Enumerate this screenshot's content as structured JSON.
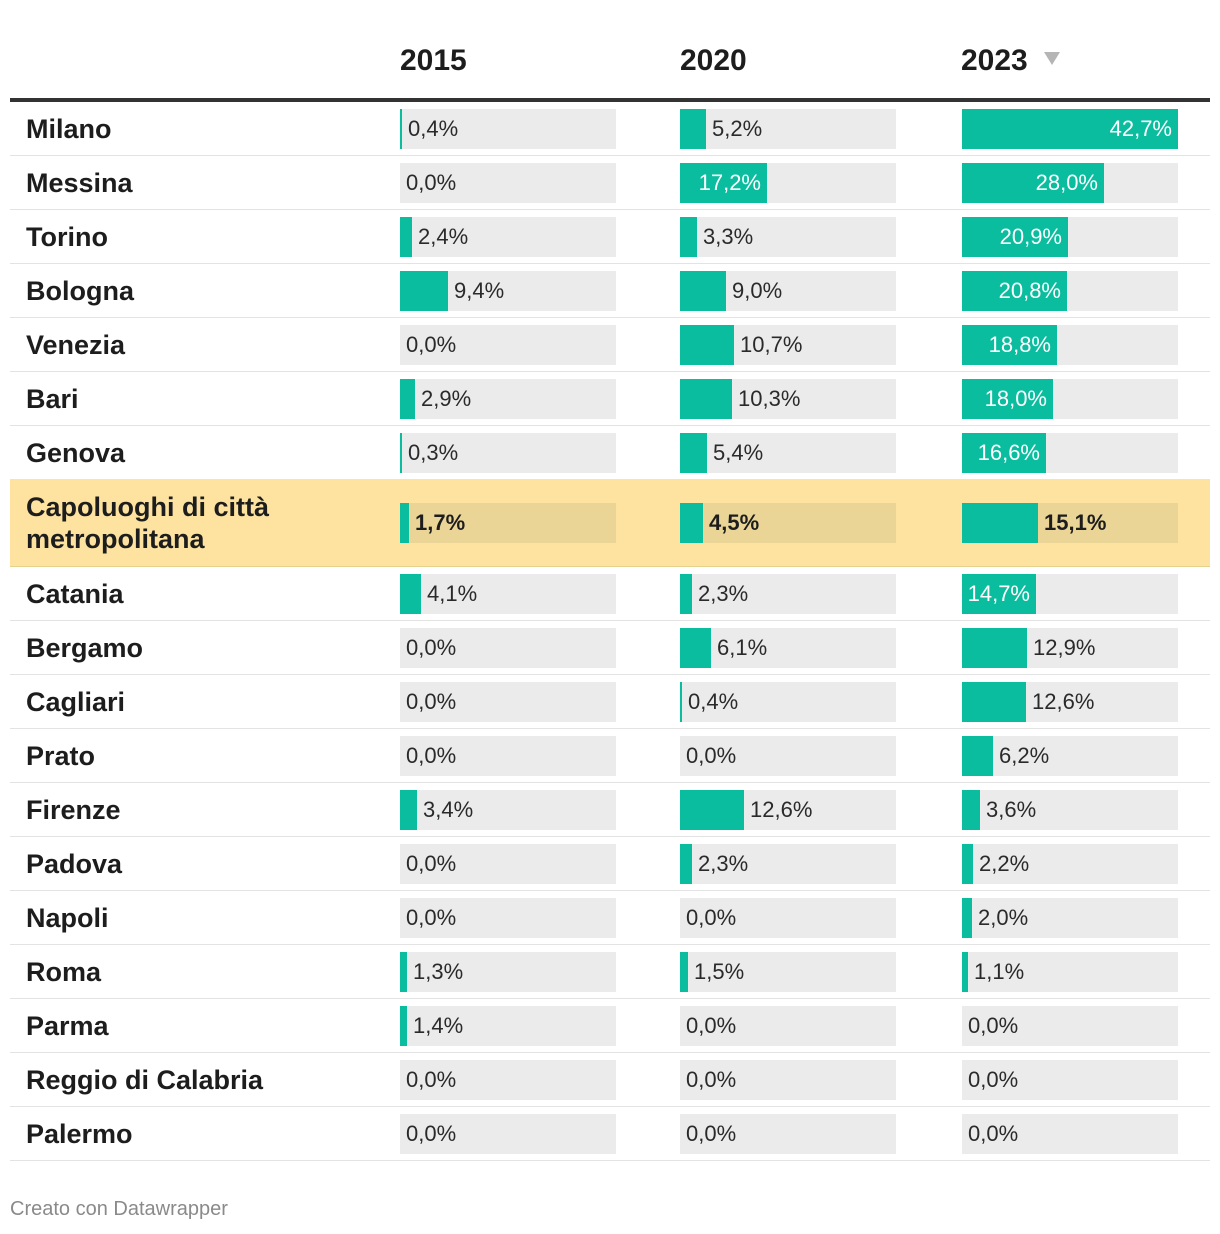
{
  "chart_data": {
    "type": "table",
    "columns": [
      "2015",
      "2020",
      "2023"
    ],
    "sorted_column": "2023",
    "sort_icon": "sort-desc-icon",
    "max_value": 42.7,
    "bar_color": "#0bbd9f",
    "highlight_color": "#fde39f",
    "rows": [
      {
        "name": "Milano",
        "values": [
          0.4,
          5.2,
          42.7
        ],
        "labels": [
          "0,4%",
          "5,2%",
          "42,7%"
        ]
      },
      {
        "name": "Messina",
        "values": [
          0.0,
          17.2,
          28.0
        ],
        "labels": [
          "0,0%",
          "17,2%",
          "28,0%"
        ]
      },
      {
        "name": "Torino",
        "values": [
          2.4,
          3.3,
          20.9
        ],
        "labels": [
          "2,4%",
          "3,3%",
          "20,9%"
        ]
      },
      {
        "name": "Bologna",
        "values": [
          9.4,
          9.0,
          20.8
        ],
        "labels": [
          "9,4%",
          "9,0%",
          "20,8%"
        ]
      },
      {
        "name": "Venezia",
        "values": [
          0.0,
          10.7,
          18.8
        ],
        "labels": [
          "0,0%",
          "10,7%",
          "18,8%"
        ]
      },
      {
        "name": "Bari",
        "values": [
          2.9,
          10.3,
          18.0
        ],
        "labels": [
          "2,9%",
          "10,3%",
          "18,0%"
        ]
      },
      {
        "name": "Genova",
        "values": [
          0.3,
          5.4,
          16.6
        ],
        "labels": [
          "0,3%",
          "5,4%",
          "16,6%"
        ]
      },
      {
        "name": "Capoluoghi di città metropolitana",
        "values": [
          1.7,
          4.5,
          15.1
        ],
        "labels": [
          "1,7%",
          "4,5%",
          "15,1%"
        ],
        "highlight": true
      },
      {
        "name": "Catania",
        "values": [
          4.1,
          2.3,
          14.7
        ],
        "labels": [
          "4,1%",
          "2,3%",
          "14,7%"
        ]
      },
      {
        "name": "Bergamo",
        "values": [
          0.0,
          6.1,
          12.9
        ],
        "labels": [
          "0,0%",
          "6,1%",
          "12,9%"
        ]
      },
      {
        "name": "Cagliari",
        "values": [
          0.0,
          0.4,
          12.6
        ],
        "labels": [
          "0,0%",
          "0,4%",
          "12,6%"
        ]
      },
      {
        "name": "Prato",
        "values": [
          0.0,
          0.0,
          6.2
        ],
        "labels": [
          "0,0%",
          "0,0%",
          "6,2%"
        ]
      },
      {
        "name": "Firenze",
        "values": [
          3.4,
          12.6,
          3.6
        ],
        "labels": [
          "3,4%",
          "12,6%",
          "3,6%"
        ]
      },
      {
        "name": "Padova",
        "values": [
          0.0,
          2.3,
          2.2
        ],
        "labels": [
          "0,0%",
          "2,3%",
          "2,2%"
        ]
      },
      {
        "name": "Napoli",
        "values": [
          0.0,
          0.0,
          2.0
        ],
        "labels": [
          "0,0%",
          "0,0%",
          "2,0%"
        ]
      },
      {
        "name": "Roma",
        "values": [
          1.3,
          1.5,
          1.1
        ],
        "labels": [
          "1,3%",
          "1,5%",
          "1,1%"
        ]
      },
      {
        "name": "Parma",
        "values": [
          1.4,
          0.0,
          0.0
        ],
        "labels": [
          "1,4%",
          "0,0%",
          "0,0%"
        ]
      },
      {
        "name": "Reggio di Calabria",
        "values": [
          0.0,
          0.0,
          0.0
        ],
        "labels": [
          "0,0%",
          "0,0%",
          "0,0%"
        ]
      },
      {
        "name": "Palermo",
        "values": [
          0.0,
          0.0,
          0.0
        ],
        "labels": [
          "0,0%",
          "0,0%",
          "0,0%"
        ]
      }
    ]
  },
  "footer": {
    "credit": "Creato con Datawrapper"
  }
}
